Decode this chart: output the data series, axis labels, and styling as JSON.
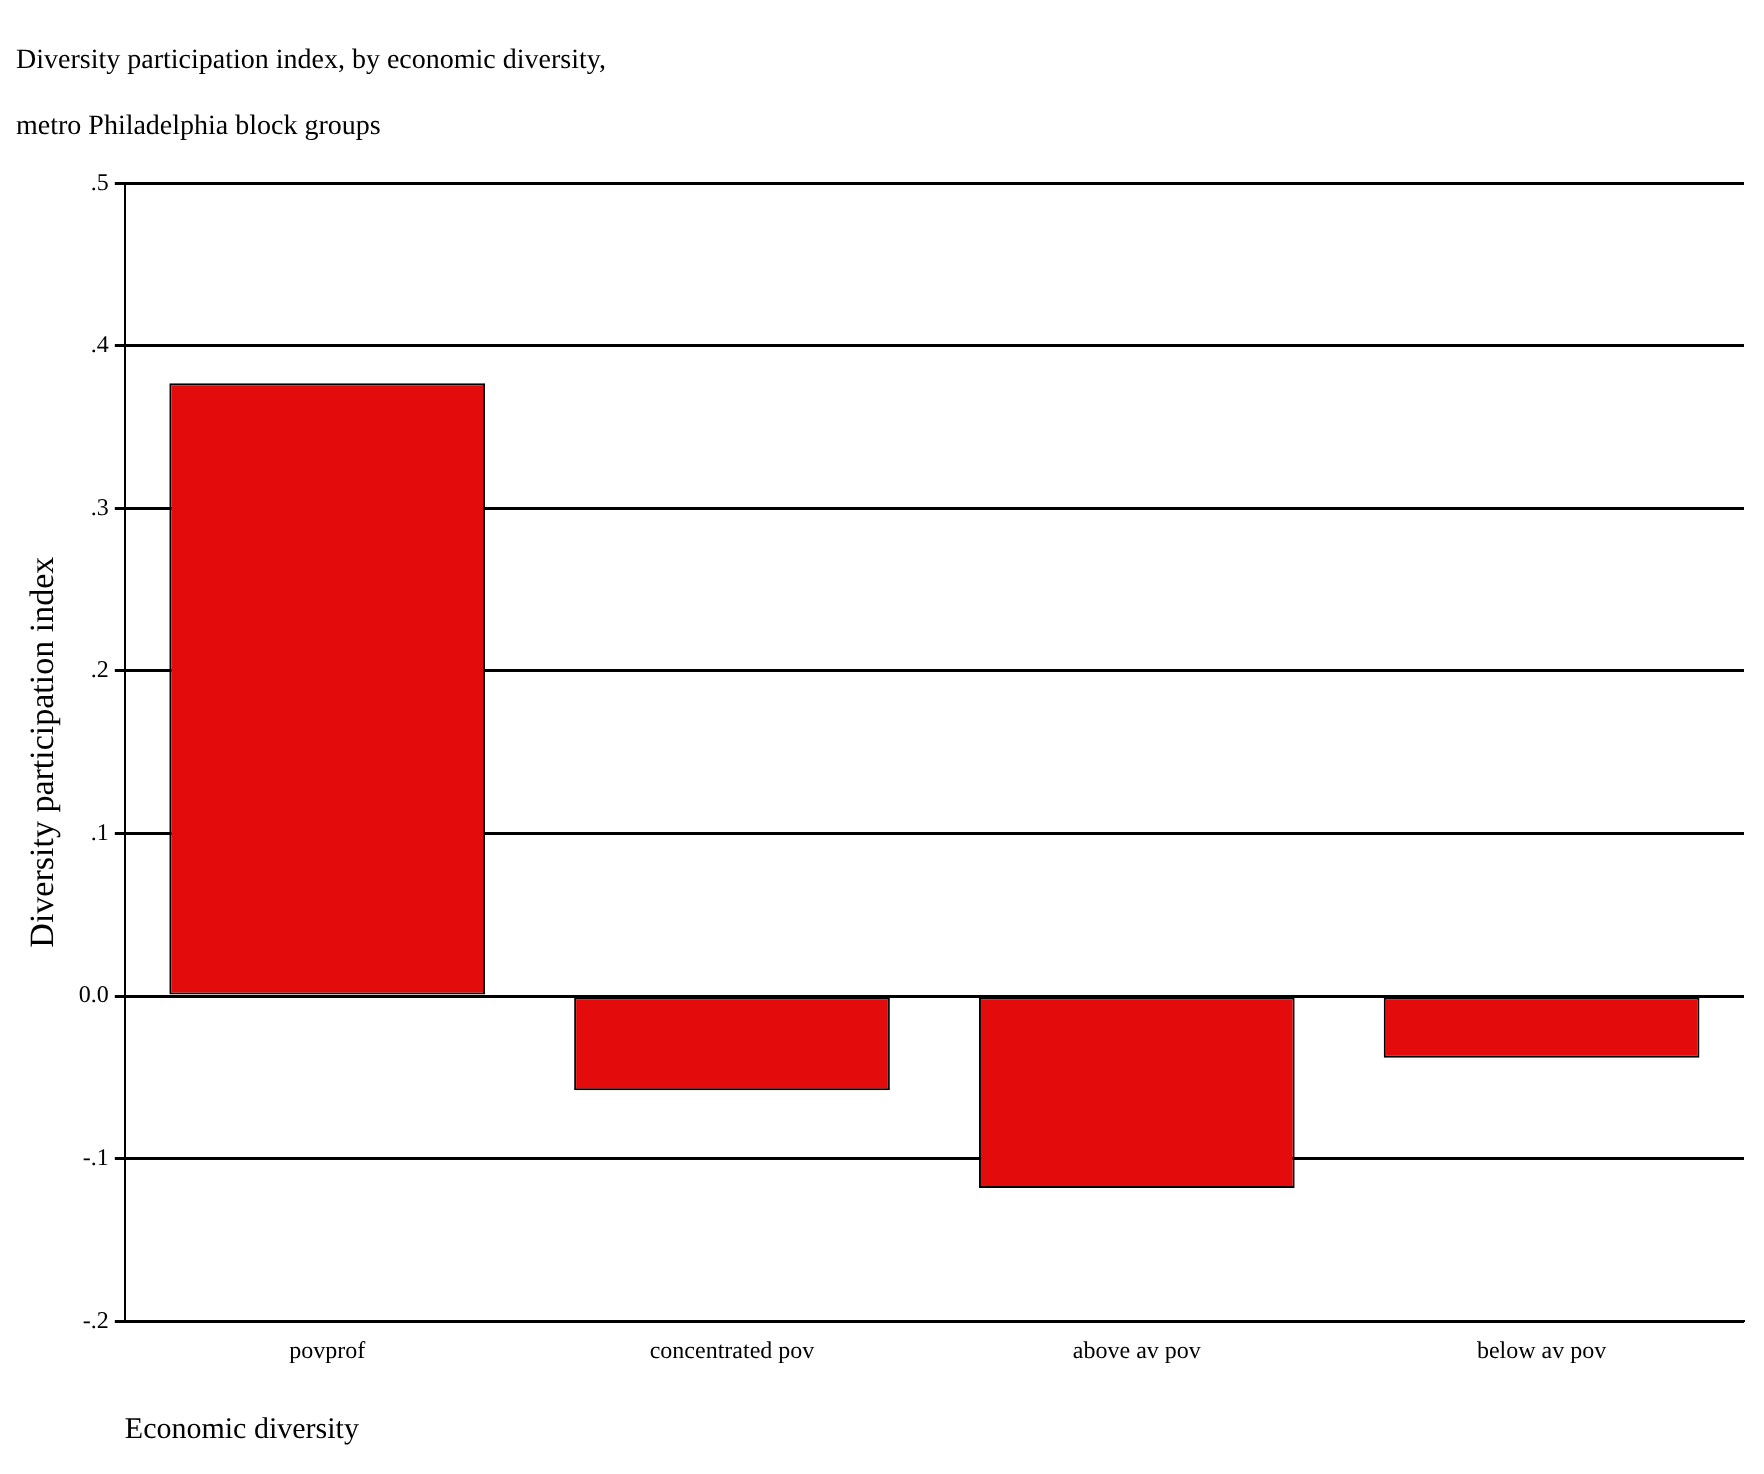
{
  "chart_data": {
    "type": "bar",
    "title": "Diversity participation index, by economic diversity,",
    "subtitle": "metro Philadelphia block groups",
    "xlabel": "Economic diversity",
    "ylabel": "Diversity participation index",
    "categories": [
      "povprof",
      "concentrated pov",
      "above av pov",
      "below av pov"
    ],
    "values": [
      0.377,
      -0.058,
      -0.118,
      -0.038
    ],
    "color": "#e30b0b",
    "ylim": [
      -0.2,
      0.5
    ],
    "yticks": [
      {
        "value": -0.2,
        "label": "-.2"
      },
      {
        "value": -0.1,
        "label": "-.1"
      },
      {
        "value": 0,
        "label": "0.0"
      },
      {
        "value": 0.1,
        "label": ".1"
      },
      {
        "value": 0.2,
        "label": ".2"
      },
      {
        "value": 0.3,
        "label": ".3"
      },
      {
        "value": 0.4,
        "label": ".4"
      },
      {
        "value": 0.5,
        "label": ".5"
      }
    ],
    "grid": "y",
    "legend": false
  }
}
